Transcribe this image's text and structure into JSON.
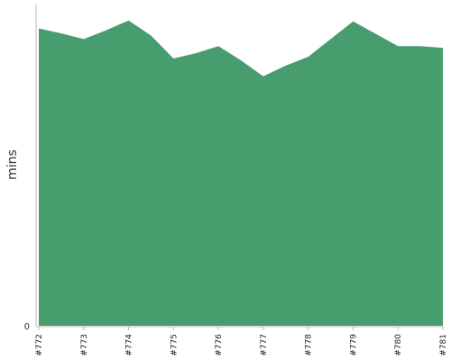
{
  "chart_data": {
    "type": "area",
    "title": "",
    "xlabel": "",
    "ylabel": "mins",
    "categories": [
      "#772",
      "#773",
      "#774",
      "#775",
      "#776",
      "#777",
      "#778",
      "#779",
      "#780",
      "#781"
    ],
    "x": [
      0,
      0.45,
      1,
      1.5,
      2,
      2.5,
      3,
      3.5,
      4,
      4.5,
      5,
      5.5,
      6,
      6.5,
      7,
      7.5,
      8,
      8.5,
      9
    ],
    "values": [
      33.6,
      33.1,
      32.4,
      33.4,
      34.5,
      32.8,
      30.2,
      30.8,
      31.6,
      30.0,
      28.2,
      29.4,
      30.4,
      32.4,
      34.4,
      33.0,
      31.6,
      31.6,
      31.4
    ],
    "y_ticks": [
      "0"
    ],
    "ylim": [
      0,
      36
    ],
    "grid": false,
    "color": "#479d6e",
    "axis_color": "#bbbbbb"
  }
}
